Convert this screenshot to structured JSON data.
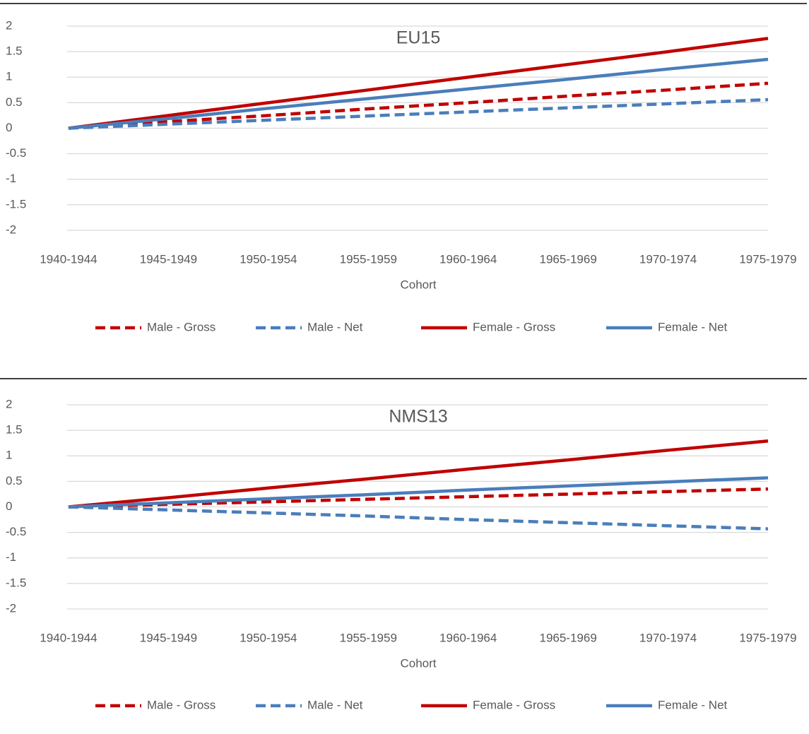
{
  "chart_data": [
    {
      "type": "line",
      "title": "EU15",
      "xlabel": "Cohort",
      "categories": [
        "1940-1944",
        "1945-1949",
        "1950-1954",
        "1955-1959",
        "1960-1964",
        "1965-1969",
        "1970-1974",
        "1975-1979"
      ],
      "series": [
        {
          "name": "Male - Gross",
          "color": "#c00000",
          "style": "dashed",
          "values": [
            0,
            0.13,
            0.25,
            0.38,
            0.5,
            0.63,
            0.75,
            0.88
          ]
        },
        {
          "name": "Male - Net",
          "color": "#4a7ebb",
          "style": "dashed",
          "values": [
            0,
            0.08,
            0.16,
            0.24,
            0.32,
            0.4,
            0.48,
            0.56
          ]
        },
        {
          "name": "Female - Gross",
          "color": "#c00000",
          "style": "solid",
          "values": [
            0,
            0.25,
            0.5,
            0.75,
            1.0,
            1.25,
            1.5,
            1.76
          ]
        },
        {
          "name": "Female - Net",
          "color": "#4a7ebb",
          "style": "solid",
          "values": [
            0,
            0.19,
            0.39,
            0.58,
            0.77,
            0.96,
            1.16,
            1.35
          ]
        }
      ],
      "ylim": [
        -2,
        2
      ],
      "yticks": [
        2,
        1.5,
        1,
        0.5,
        0,
        -0.5,
        -1,
        -1.5,
        -2
      ],
      "grid": true,
      "legend": "bottom"
    },
    {
      "type": "line",
      "title": "NMS13",
      "xlabel": "Cohort",
      "categories": [
        "1940-1944",
        "1945-1949",
        "1950-1954",
        "1955-1959",
        "1960-1964",
        "1965-1969",
        "1970-1974",
        "1975-1979"
      ],
      "series": [
        {
          "name": "Male - Gross",
          "color": "#c00000",
          "style": "dashed",
          "values": [
            0,
            0.05,
            0.1,
            0.15,
            0.2,
            0.25,
            0.3,
            0.35
          ]
        },
        {
          "name": "Male - Net",
          "color": "#4a7ebb",
          "style": "dashed",
          "values": [
            0,
            -0.06,
            -0.12,
            -0.18,
            -0.25,
            -0.31,
            -0.37,
            -0.43
          ]
        },
        {
          "name": "Female - Gross",
          "color": "#c00000",
          "style": "solid",
          "values": [
            0,
            0.18,
            0.37,
            0.55,
            0.74,
            0.92,
            1.11,
            1.29
          ]
        },
        {
          "name": "Female - Net",
          "color": "#4a7ebb",
          "style": "solid",
          "values": [
            0,
            0.08,
            0.16,
            0.24,
            0.33,
            0.41,
            0.49,
            0.57
          ]
        }
      ],
      "ylim": [
        -2,
        2
      ],
      "yticks": [
        2,
        1.5,
        1,
        0.5,
        0,
        -0.5,
        -1,
        -1.5,
        -2
      ],
      "grid": true,
      "legend": "bottom"
    }
  ]
}
